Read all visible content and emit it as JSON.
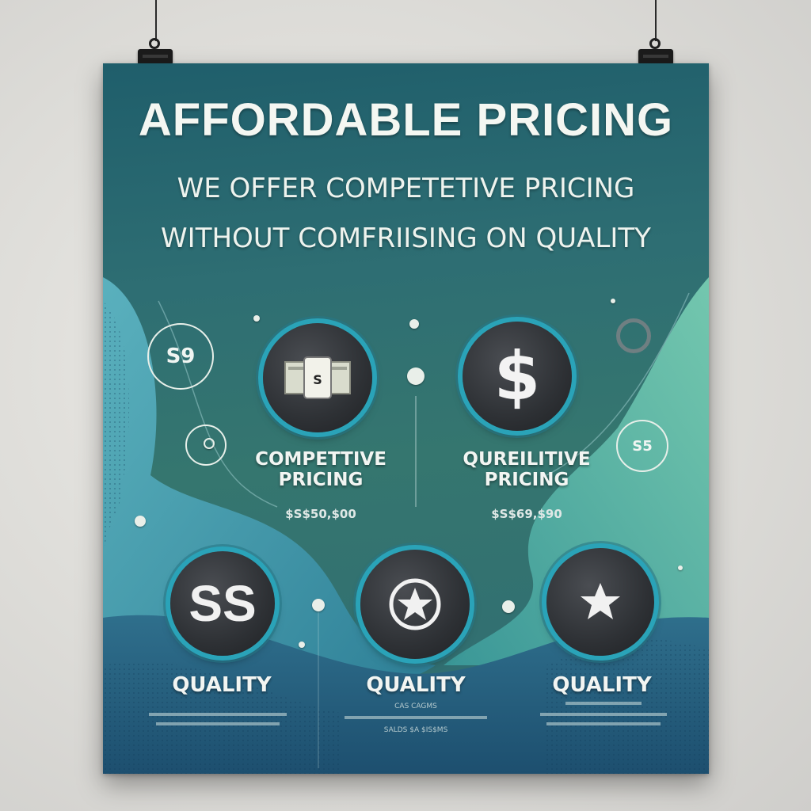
{
  "poster": {
    "title": "AFFORDABLE PRICING",
    "subtitle_line1": "WE OFFER COMPETETIVE PRICING",
    "subtitle_line2": "WITHOUT COMFRIISING ON QUALITY"
  },
  "top_row": [
    {
      "label_line1": "COMPETTIVE",
      "label_line2": "PRICING",
      "price": "$S$50,$00",
      "icon": "money-stack-icon"
    },
    {
      "label_line1": "QUREILITIVE",
      "label_line2": "PRICING",
      "price": "$S$69,$90",
      "icon": "dollar-sign-icon"
    }
  ],
  "bottom_row": [
    {
      "label": "QUALITY",
      "icon_text": "SS",
      "icon": "dollar-text-icon",
      "caption_line1": "",
      "caption_line2": ""
    },
    {
      "label": "QUALITY",
      "icon": "star-circle-icon",
      "caption_line1": "CAS CAGMS",
      "caption_line2": "SALDS $A $IS$MS"
    },
    {
      "label": "QUALITY",
      "icon": "star-icon",
      "caption_line1": "",
      "caption_line2": ""
    }
  ],
  "badges": {
    "left": "S9",
    "right": "S5"
  },
  "money_icon_text": "S",
  "dollar_symbol": "$",
  "colors": {
    "ring_accent": "#2aa3b8",
    "poster_dark": "#1f5e6b",
    "poster_teal": "#35766f",
    "text_light": "#f4f7f2"
  }
}
